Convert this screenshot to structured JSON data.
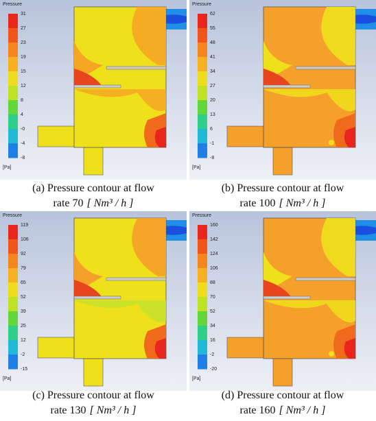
{
  "panels": [
    {
      "legend_title": "Pressure",
      "labels": [
        "31",
        "27",
        "23",
        "19",
        "15",
        "12",
        "8",
        "4",
        "-0",
        "-4",
        "-8"
      ],
      "unit_label": "[Pa]",
      "caption": {
        "line1": "(a) Pressure contour at flow",
        "line2": "rate 70",
        "unit": "[ Nm³ / h ]"
      }
    },
    {
      "legend_title": "Pressure",
      "labels": [
        "62",
        "55",
        "48",
        "41",
        "34",
        "27",
        "20",
        "13",
        "6",
        "-1",
        "-8"
      ],
      "unit_label": "[Pa]",
      "caption": {
        "line1": "(b) Pressure contour at flow",
        "line2": "rate 100",
        "unit": "[ Nm³ / h ]"
      }
    },
    {
      "legend_title": "Pressure",
      "labels": [
        "119",
        "106",
        "92",
        "79",
        "65",
        "52",
        "39",
        "25",
        "12",
        "-2",
        "-15"
      ],
      "unit_label": "[Pa]",
      "caption": {
        "line1": "(c) Pressure contour at flow",
        "line2": "rate 130",
        "unit": "[ Nm³ / h ]"
      }
    },
    {
      "legend_title": "Pressure",
      "labels": [
        "160",
        "142",
        "124",
        "106",
        "88",
        "70",
        "52",
        "34",
        "16",
        "-2",
        "-20"
      ],
      "unit_label": "[Pa]",
      "caption": {
        "line1": "(d) Pressure contour at flow",
        "line2": "rate 160",
        "unit": "[ Nm³ / h ]"
      }
    }
  ]
}
